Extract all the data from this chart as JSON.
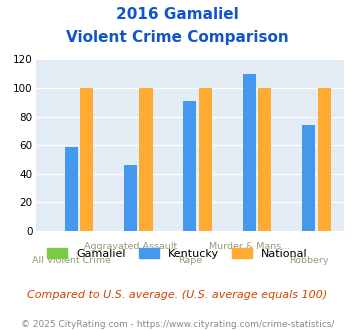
{
  "title_line1": "2016 Gamaliel",
  "title_line2": "Violent Crime Comparison",
  "categories": [
    "All Violent Crime",
    "Aggravated Assault",
    "Rape",
    "Murder & Mans...",
    "Robbery"
  ],
  "top_labels": [
    "",
    "Aggravated Assault",
    "",
    "Murder & Mans...",
    ""
  ],
  "bottom_labels": [
    "All Violent Crime",
    "",
    "Rape",
    "",
    "Robbery"
  ],
  "gamaliel_values": [
    0,
    0,
    0,
    0,
    0
  ],
  "kentucky_values": [
    59,
    46,
    91,
    110,
    74
  ],
  "national_values": [
    100,
    100,
    100,
    100,
    100
  ],
  "gamaliel_color": "#77cc44",
  "kentucky_color": "#4499ee",
  "national_color": "#ffaa33",
  "bg_color": "#e4edf5",
  "title_color": "#1155cc",
  "ylim": [
    0,
    120
  ],
  "yticks": [
    0,
    20,
    40,
    60,
    80,
    100,
    120
  ],
  "legend_labels": [
    "Gamaliel",
    "Kentucky",
    "National"
  ],
  "footer_text": "Compared to U.S. average. (U.S. average equals 100)",
  "credit_text": "© 2025 CityRating.com - https://www.cityrating.com/crime-statistics/",
  "title_fontsize": 11,
  "axis_label_fontsize": 6.8,
  "footer_fontsize": 8,
  "credit_fontsize": 6.5,
  "legend_fontsize": 8,
  "ytick_fontsize": 7.5,
  "label_color": "#999977",
  "footer_color": "#cc4400",
  "credit_color": "#888888",
  "grid_color": "#ffffff",
  "bar_width": 0.22,
  "bar_gap": 0.04
}
